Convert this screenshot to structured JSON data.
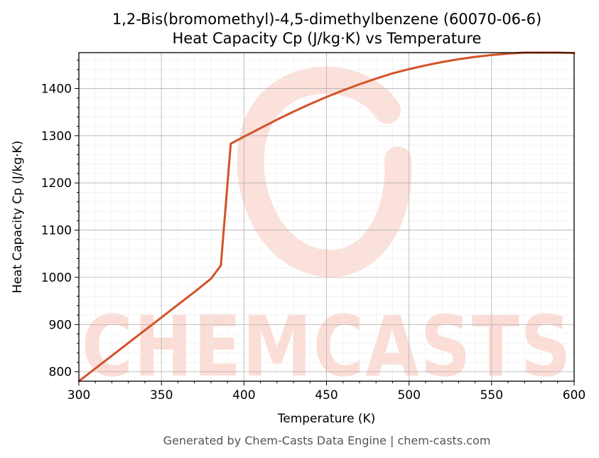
{
  "chart_data": {
    "type": "line",
    "title_line1": "1,2-Bis(bromomethyl)-4,5-dimethylbenzene (60070-06-6)",
    "title_line2": "Heat Capacity Cp (J/kg·K) vs Temperature",
    "xlabel": "Temperature (K)",
    "ylabel": "Heat Capacity Cp (J/kg·K)",
    "xlim": [
      300,
      600
    ],
    "ylim": [
      780,
      1476
    ],
    "x_ticks": [
      300,
      350,
      400,
      450,
      500,
      550,
      600
    ],
    "y_ticks": [
      800,
      900,
      1000,
      1100,
      1200,
      1300,
      1400
    ],
    "grid": true,
    "line_color": "#d4522a",
    "series": [
      {
        "x": [
          300,
          310,
          320,
          330,
          340,
          350,
          360,
          370,
          380,
          386,
          392,
          400,
          410,
          420,
          430,
          440,
          450,
          460,
          470,
          480,
          490,
          500,
          510,
          520,
          530,
          540,
          550,
          560,
          570,
          580,
          590,
          600
        ],
        "values": [
          780,
          807,
          834,
          861,
          888,
          915,
          942,
          969,
          997,
          1025,
          1283,
          1298,
          1316,
          1334,
          1351,
          1367,
          1382,
          1396,
          1409,
          1421,
          1432,
          1441,
          1449,
          1456,
          1462,
          1467,
          1471,
          1474,
          1476,
          1476,
          1476,
          1475
        ]
      }
    ]
  },
  "watermark": {
    "text": "CHEMCASTS",
    "color": "#fbd5cd"
  },
  "footer": "Generated by Chem-Casts Data Engine | chem-casts.com"
}
